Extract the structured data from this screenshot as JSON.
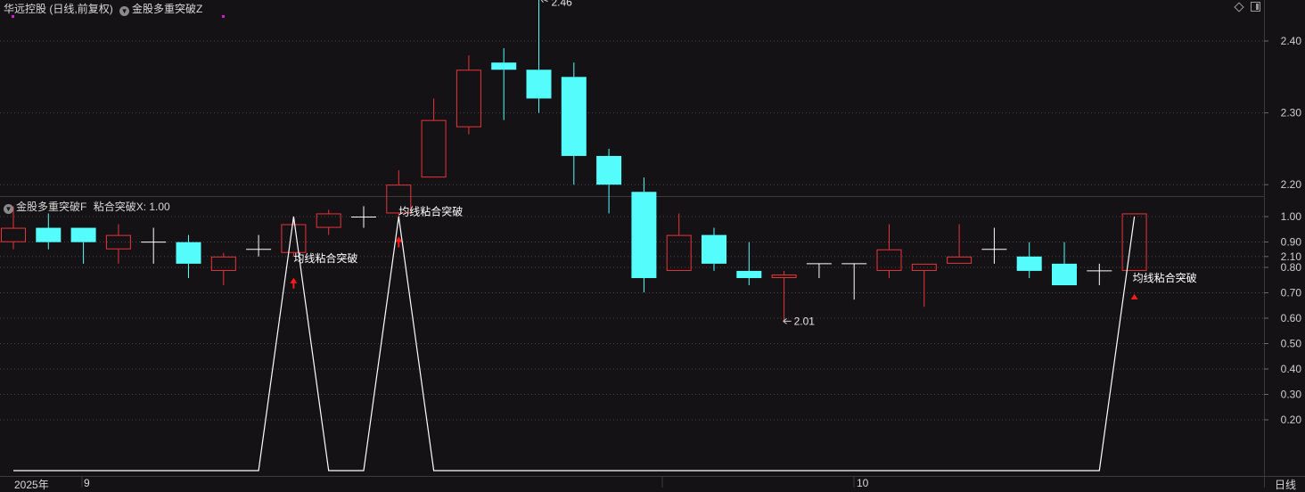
{
  "header": {
    "stock_name": "华远控股",
    "period_mode": "(日线,前复权)",
    "indicator_name": "金股多重突破Z"
  },
  "sub_header": {
    "indicator_name": "金股多重突破F",
    "value_label": "粘合突破X: 1.00"
  },
  "footer": {
    "year_label": "2025年",
    "month_labels": [
      "9",
      "10"
    ],
    "period_button": "日线"
  },
  "icons": [
    "diamond-icon",
    "panel-toggle-icon",
    "chevron-down-icon"
  ],
  "colors": {
    "up_candle": "#e8353b",
    "down_candle": "#54fcfc",
    "flat_candle": "#ffffff",
    "signal_line": "#ffffff",
    "signal_arrow": "#ff1a1a",
    "background": "#141215"
  },
  "chart_data": [
    {
      "type": "candlestick",
      "title": "华远控股 (日线,前复权)",
      "ylim": [
        2.0,
        2.46
      ],
      "y_ticks": [
        "2.40",
        "2.30",
        "2.20",
        "2.10"
      ],
      "max_label": "2.46",
      "min_label": "2.01",
      "annotations": [
        {
          "index": 8,
          "text": "均线粘合突破"
        },
        {
          "index": 11,
          "text": "均线粘合突破"
        },
        {
          "index": 32,
          "text": "均线粘合突破"
        }
      ],
      "candles": [
        {
          "o": 2.12,
          "c": 2.14,
          "h": 2.17,
          "l": 2.11
        },
        {
          "o": 2.14,
          "c": 2.12,
          "h": 2.16,
          "l": 2.11
        },
        {
          "o": 2.14,
          "c": 2.12,
          "h": 2.14,
          "l": 2.09
        },
        {
          "o": 2.11,
          "c": 2.13,
          "h": 2.145,
          "l": 2.09
        },
        {
          "o": 2.12,
          "c": 2.12,
          "h": 2.14,
          "l": 2.09
        },
        {
          "o": 2.12,
          "c": 2.09,
          "h": 2.13,
          "l": 2.07
        },
        {
          "o": 2.08,
          "c": 2.1,
          "h": 2.105,
          "l": 2.06
        },
        {
          "o": 2.11,
          "c": 2.11,
          "h": 2.13,
          "l": 2.1
        },
        {
          "o": 2.105,
          "c": 2.145,
          "h": 2.15,
          "l": 2.1
        },
        {
          "o": 2.14,
          "c": 2.16,
          "h": 2.165,
          "l": 2.13
        },
        {
          "o": 2.155,
          "c": 2.155,
          "h": 2.17,
          "l": 2.14
        },
        {
          "o": 2.16,
          "c": 2.2,
          "h": 2.22,
          "l": 2.15
        },
        {
          "o": 2.21,
          "c": 2.29,
          "h": 2.32,
          "l": 2.21
        },
        {
          "o": 2.28,
          "c": 2.36,
          "h": 2.38,
          "l": 2.27
        },
        {
          "o": 2.37,
          "c": 2.36,
          "h": 2.39,
          "l": 2.29
        },
        {
          "o": 2.36,
          "c": 2.32,
          "h": 2.46,
          "l": 2.3
        },
        {
          "o": 2.35,
          "c": 2.24,
          "h": 2.37,
          "l": 2.2
        },
        {
          "o": 2.24,
          "c": 2.2,
          "h": 2.25,
          "l": 2.16
        },
        {
          "o": 2.19,
          "c": 2.07,
          "h": 2.21,
          "l": 2.05
        },
        {
          "o": 2.08,
          "c": 2.13,
          "h": 2.16,
          "l": 2.08
        },
        {
          "o": 2.13,
          "c": 2.09,
          "h": 2.14,
          "l": 2.08
        },
        {
          "o": 2.08,
          "c": 2.07,
          "h": 2.12,
          "l": 2.06
        },
        {
          "o": 2.07,
          "c": 2.075,
          "h": 2.08,
          "l": 2.01
        },
        {
          "o": 2.09,
          "c": 2.09,
          "h": 2.09,
          "l": 2.07
        },
        {
          "o": 2.09,
          "c": 2.09,
          "h": 2.09,
          "l": 2.04
        },
        {
          "o": 2.08,
          "c": 2.11,
          "h": 2.145,
          "l": 2.07
        },
        {
          "o": 2.08,
          "c": 2.09,
          "h": 2.09,
          "l": 2.03
        },
        {
          "o": 2.09,
          "c": 2.1,
          "h": 2.145,
          "l": 2.09
        },
        {
          "o": 2.11,
          "c": 2.11,
          "h": 2.14,
          "l": 2.09
        },
        {
          "o": 2.1,
          "c": 2.08,
          "h": 2.12,
          "l": 2.07
        },
        {
          "o": 2.09,
          "c": 2.06,
          "h": 2.12,
          "l": 2.06
        },
        {
          "o": 2.08,
          "c": 2.08,
          "h": 2.09,
          "l": 2.06
        },
        {
          "o": 2.08,
          "c": 2.16,
          "h": 2.16,
          "l": 2.08
        }
      ]
    },
    {
      "type": "line",
      "title": "金股多重突破F",
      "ylim": [
        0.0,
        1.0
      ],
      "y_ticks": [
        "1.00",
        "0.90",
        "0.80",
        "0.70",
        "0.60",
        "0.50",
        "0.40",
        "0.30",
        "0.20"
      ],
      "series": [
        {
          "name": "粘合突破X",
          "values": [
            0,
            0,
            0,
            0,
            0,
            0,
            0,
            0,
            1,
            0,
            0,
            1,
            0,
            0,
            0,
            0,
            0,
            0,
            0,
            0,
            0,
            0,
            0,
            0,
            0,
            0,
            0,
            0,
            0,
            0,
            0,
            0,
            1
          ]
        }
      ]
    }
  ]
}
